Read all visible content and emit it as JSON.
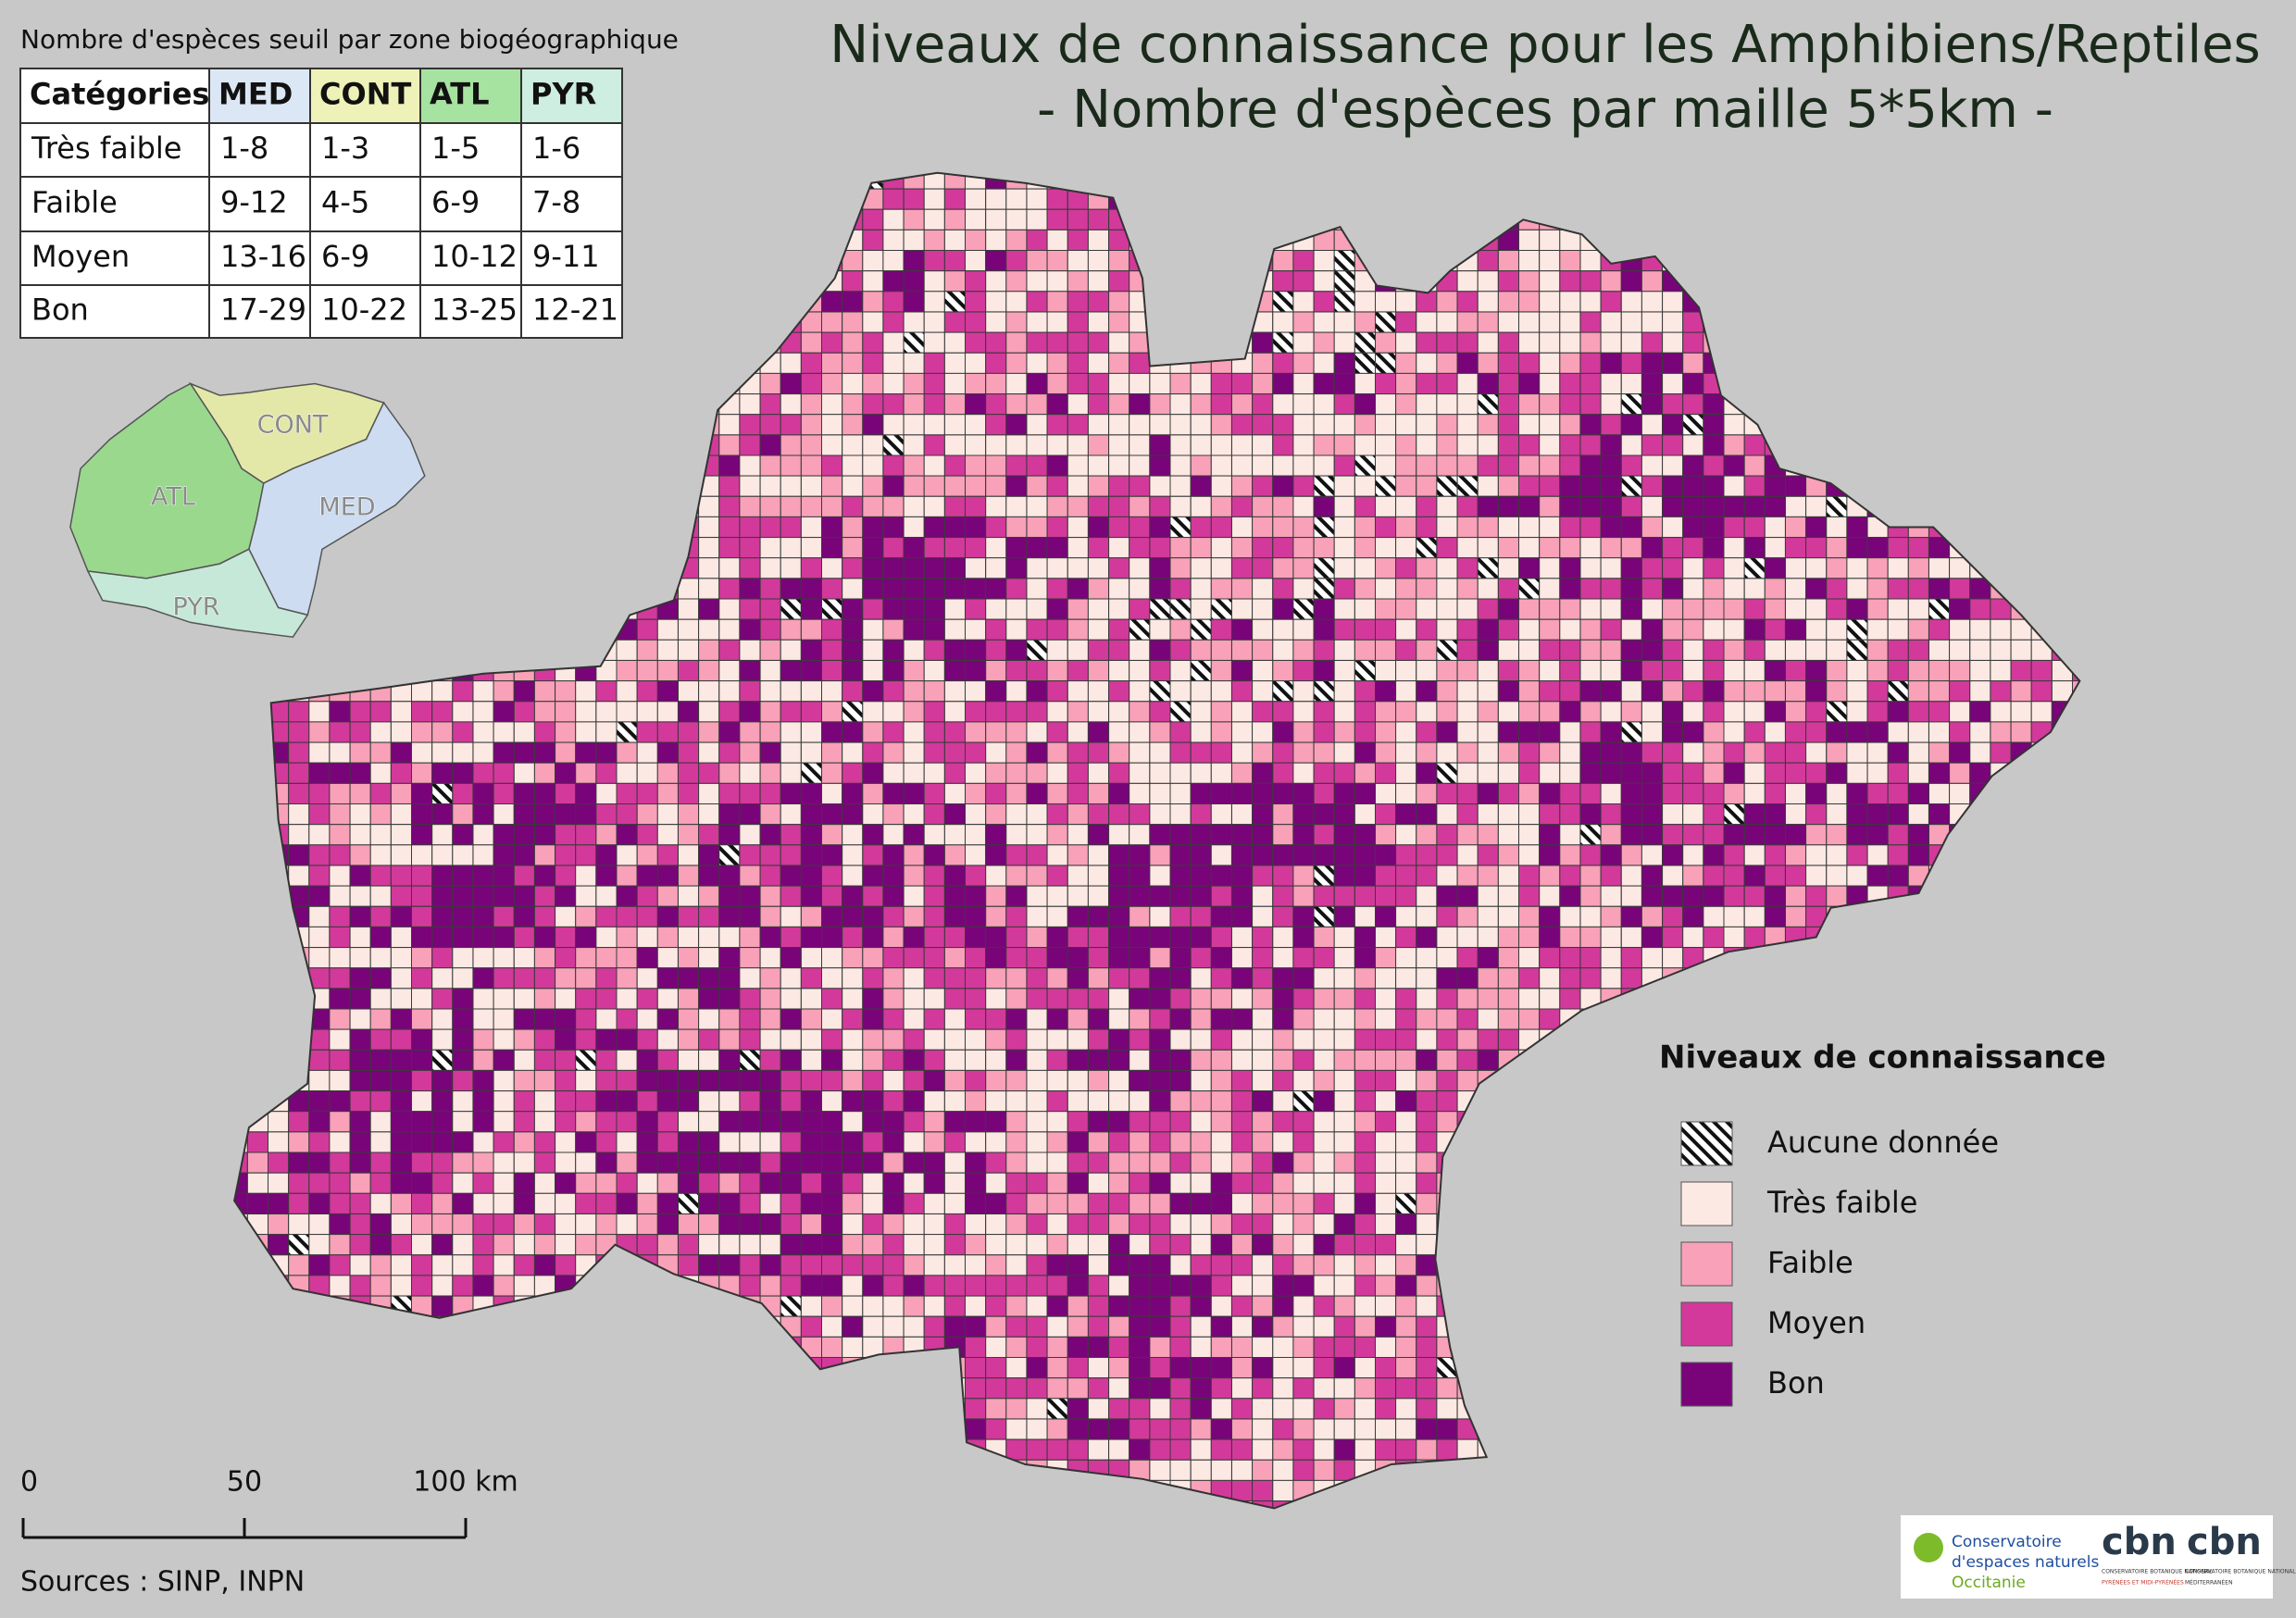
{
  "title": [
    "Niveaux de connaissance pour les Amphibiens/Reptiles",
    "- Nombre d'espèces par maille 5*5km -"
  ],
  "threshold_table": {
    "caption": "Nombre d'espèces seuil par zone biogéographique",
    "header": [
      "Catégories",
      "MED",
      "CONT",
      "ATL",
      "PYR"
    ],
    "header_colors": [
      "#ffffff",
      "#dce7f5",
      "#eef2b8",
      "#a6e3a0",
      "#cdeee0"
    ],
    "rows": [
      [
        "Très faible",
        "1-8",
        "1-3",
        "1-5",
        "1-6"
      ],
      [
        "Faible",
        "9-12",
        "4-5",
        "6-9",
        "7-8"
      ],
      [
        "Moyen",
        "13-16",
        "6-9",
        "10-12",
        "9-11"
      ],
      [
        "Bon",
        "17-29",
        "10-22",
        "13-25",
        "12-21"
      ]
    ]
  },
  "inset_map": {
    "labels": [
      "CONT",
      "ATL",
      "MED",
      "PYR"
    ],
    "colors": [
      "#e3e8a8",
      "#9ad88e",
      "#cddcf0",
      "#c6e8d8"
    ]
  },
  "legend": {
    "title": "Niveaux de connaissance",
    "items": [
      {
        "label": "Aucune donnée",
        "pattern": "hatch"
      },
      {
        "label": "Très faible",
        "color": "#fde9e3"
      },
      {
        "label": "Faible",
        "color": "#f8a1b9"
      },
      {
        "label": "Moyen",
        "color": "#d3399b"
      },
      {
        "label": "Bon",
        "color": "#790479"
      }
    ]
  },
  "scale_bar": {
    "labels": [
      "0",
      "50",
      "100 km"
    ]
  },
  "sources": "Sources : SINP, INPN",
  "logos": {
    "cen": [
      "Conservatoire",
      "d'espaces naturels",
      "Occitanie"
    ],
    "cbn": [
      "cbn",
      "cbn"
    ],
    "cbn_small": [
      "CONSERVATOIRE BOTANIQUE NATIONAL",
      "PYRÉNÉES ET MIDI-PYRÉNÉES",
      "CONSERVATOIRE BOTANIQUE NATIONAL",
      "MÉDITERRANÉEN"
    ]
  }
}
